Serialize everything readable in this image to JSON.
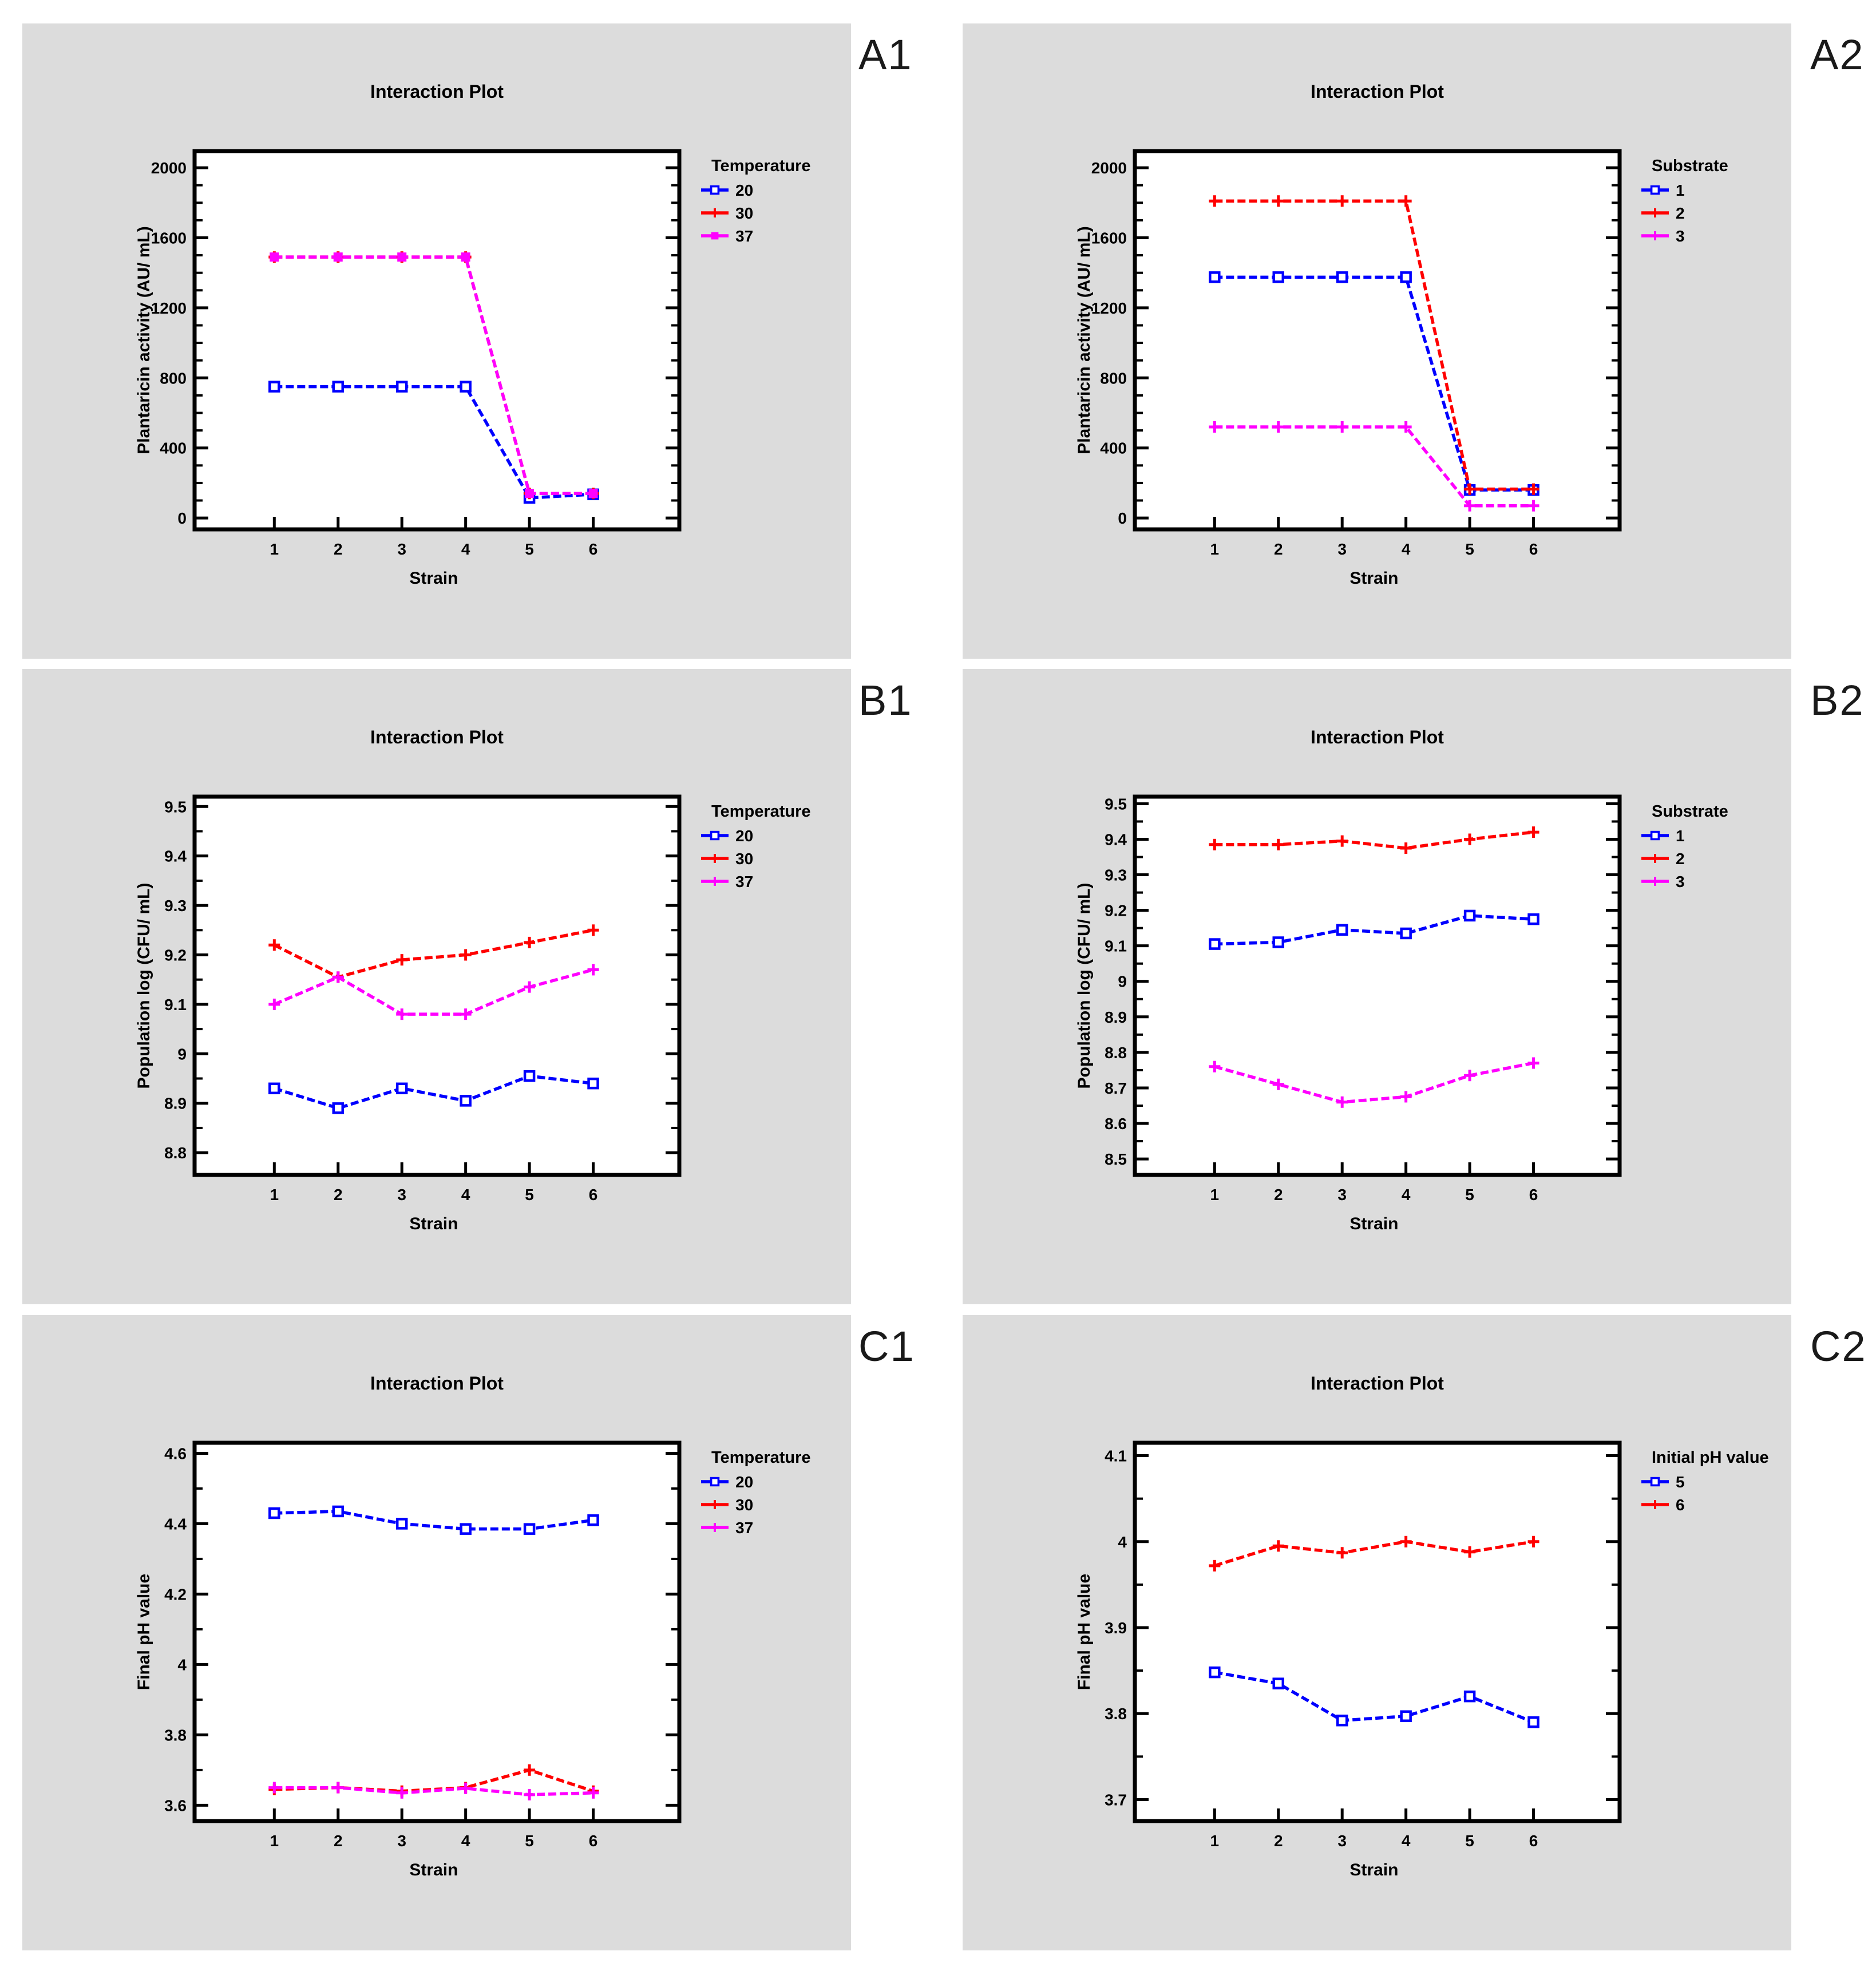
{
  "colors": {
    "panel_bg": "#dcdcdc",
    "plot_bg": "#ffffff",
    "axis": "#000000",
    "blue": "#0000ff",
    "red": "#ff0000",
    "magenta": "#ff00ff"
  },
  "chart_data": [
    {
      "panel_label": "A1",
      "type": "line",
      "title": "Interaction Plot",
      "xlabel": "Strain",
      "ylabel": "Plantaricin activity (AU/ mL)",
      "x": [
        1,
        2,
        3,
        4,
        5,
        6
      ],
      "xlim": [
        -0.25,
        7.35
      ],
      "ylim": [
        -65,
        2095
      ],
      "yticks": [
        0,
        400,
        800,
        1200,
        1600,
        2000
      ],
      "ytick_labels": [
        "0",
        "400",
        "800",
        "1200",
        "1600",
        "2000"
      ],
      "minor_step": 100,
      "grid": false,
      "legend_position": "right-top",
      "legend_title": "Temperature",
      "series": [
        {
          "name": "20",
          "color": "#0000ff",
          "marker": "square-open",
          "line": "dashed",
          "values": [
            750,
            750,
            750,
            750,
            115,
            135
          ]
        },
        {
          "name": "30",
          "color": "#ff0000",
          "marker": "plus",
          "line": "dashed",
          "values": [
            1490,
            1490,
            1490,
            1490,
            140,
            140
          ]
        },
        {
          "name": "37",
          "color": "#ff00ff",
          "marker": "square-filled",
          "line": "dashed",
          "values": [
            1490,
            1490,
            1490,
            1490,
            140,
            140
          ]
        }
      ]
    },
    {
      "panel_label": "A2",
      "type": "line",
      "title": "Interaction Plot",
      "xlabel": "Strain",
      "ylabel": "Plantaricin activity (AU/ mL)",
      "x": [
        1,
        2,
        3,
        4,
        5,
        6
      ],
      "xlim": [
        -0.25,
        7.35
      ],
      "ylim": [
        -65,
        2095
      ],
      "yticks": [
        0,
        400,
        800,
        1200,
        1600,
        2000
      ],
      "ytick_labels": [
        "0",
        "400",
        "800",
        "1200",
        "1600",
        "2000"
      ],
      "minor_step": 100,
      "grid": false,
      "legend_position": "right-top",
      "legend_title": "Substrate",
      "series": [
        {
          "name": "1",
          "color": "#0000ff",
          "marker": "square-open",
          "line": "dashed",
          "values": [
            1375,
            1375,
            1375,
            1375,
            160,
            160
          ]
        },
        {
          "name": "2",
          "color": "#ff0000",
          "marker": "plus",
          "line": "dashed",
          "values": [
            1810,
            1810,
            1810,
            1810,
            165,
            165
          ]
        },
        {
          "name": "3",
          "color": "#ff00ff",
          "marker": "plus",
          "line": "dashed",
          "values": [
            520,
            520,
            520,
            520,
            70,
            70
          ]
        }
      ]
    },
    {
      "panel_label": "B1",
      "type": "line",
      "title": "Interaction Plot",
      "xlabel": "Strain",
      "ylabel": "Population log (CFU/ mL)",
      "x": [
        1,
        2,
        3,
        4,
        5,
        6
      ],
      "xlim": [
        -0.25,
        7.35
      ],
      "ylim": [
        8.755,
        9.52
      ],
      "yticks": [
        8.8,
        8.9,
        9.0,
        9.1,
        9.2,
        9.3,
        9.4,
        9.5
      ],
      "ytick_labels": [
        "8.8",
        "8.9",
        "9",
        "9.1",
        "9.2",
        "9.3",
        "9.4",
        "9.5"
      ],
      "minor_step": 0.05,
      "grid": false,
      "legend_position": "right-top",
      "legend_title": "Temperature",
      "series": [
        {
          "name": "20",
          "color": "#0000ff",
          "marker": "square-open",
          "line": "dashed",
          "values": [
            8.93,
            8.89,
            8.93,
            8.905,
            8.955,
            8.94
          ]
        },
        {
          "name": "30",
          "color": "#ff0000",
          "marker": "plus",
          "line": "dashed",
          "values": [
            9.22,
            9.155,
            9.19,
            9.2,
            9.225,
            9.25
          ]
        },
        {
          "name": "37",
          "color": "#ff00ff",
          "marker": "plus",
          "line": "dashed",
          "values": [
            9.1,
            9.155,
            9.08,
            9.08,
            9.135,
            9.17
          ]
        }
      ]
    },
    {
      "panel_label": "B2",
      "type": "line",
      "title": "Interaction Plot",
      "xlabel": "Strain",
      "ylabel": "Population log (CFU/ mL)",
      "x": [
        1,
        2,
        3,
        4,
        5,
        6
      ],
      "xlim": [
        -0.25,
        7.35
      ],
      "ylim": [
        8.455,
        9.52
      ],
      "yticks": [
        8.5,
        8.6,
        8.7,
        8.8,
        8.9,
        9.0,
        9.1,
        9.2,
        9.3,
        9.4,
        9.5
      ],
      "ytick_labels": [
        "8.5",
        "8.6",
        "8.7",
        "8.8",
        "8.9",
        "9",
        "9.1",
        "9.2",
        "9.3",
        "9.4",
        "9.5"
      ],
      "minor_step": 0.05,
      "grid": false,
      "legend_position": "right-top",
      "legend_title": "Substrate",
      "series": [
        {
          "name": "1",
          "color": "#0000ff",
          "marker": "square-open",
          "line": "dashed",
          "values": [
            9.105,
            9.11,
            9.145,
            9.135,
            9.185,
            9.175
          ]
        },
        {
          "name": "2",
          "color": "#ff0000",
          "marker": "plus",
          "line": "dashed",
          "values": [
            9.385,
            9.385,
            9.395,
            9.375,
            9.4,
            9.42
          ]
        },
        {
          "name": "3",
          "color": "#ff00ff",
          "marker": "plus",
          "line": "dashed",
          "values": [
            8.76,
            8.71,
            8.66,
            8.675,
            8.735,
            8.77
          ]
        }
      ]
    },
    {
      "panel_label": "C1",
      "type": "line",
      "title": "Interaction Plot",
      "xlabel": "Strain",
      "ylabel": "Final pH value",
      "x": [
        1,
        2,
        3,
        4,
        5,
        6
      ],
      "xlim": [
        -0.25,
        7.35
      ],
      "ylim": [
        3.555,
        4.63
      ],
      "yticks": [
        3.6,
        3.8,
        4.0,
        4.2,
        4.4,
        4.6
      ],
      "ytick_labels": [
        "3.6",
        "3.8",
        "4",
        "4.2",
        "4.4",
        "4.6"
      ],
      "minor_step": 0.1,
      "grid": false,
      "legend_position": "right-top",
      "legend_title": "Temperature",
      "series": [
        {
          "name": "20",
          "color": "#0000ff",
          "marker": "square-open",
          "line": "dashed",
          "values": [
            4.43,
            4.435,
            4.4,
            4.385,
            4.385,
            4.41
          ]
        },
        {
          "name": "30",
          "color": "#ff0000",
          "marker": "plus",
          "line": "dashed",
          "values": [
            3.645,
            3.65,
            3.64,
            3.65,
            3.7,
            3.64
          ]
        },
        {
          "name": "37",
          "color": "#ff00ff",
          "marker": "plus",
          "line": "dashed",
          "values": [
            3.65,
            3.65,
            3.635,
            3.648,
            3.63,
            3.635
          ]
        }
      ]
    },
    {
      "panel_label": "C2",
      "type": "line",
      "title": "Interaction Plot",
      "xlabel": "Strain",
      "ylabel": "Final pH value",
      "x": [
        1,
        2,
        3,
        4,
        5,
        6
      ],
      "xlim": [
        -0.25,
        7.35
      ],
      "ylim": [
        3.675,
        4.115
      ],
      "yticks": [
        3.7,
        3.8,
        3.9,
        4.0,
        4.1
      ],
      "ytick_labels": [
        "3.7",
        "3.8",
        "3.9",
        "4",
        "4.1"
      ],
      "minor_step": 0.05,
      "grid": false,
      "legend_position": "right-top",
      "legend_title": "Initial pH value",
      "series": [
        {
          "name": "5",
          "color": "#0000ff",
          "marker": "square-open",
          "line": "dashed",
          "values": [
            3.848,
            3.835,
            3.792,
            3.797,
            3.82,
            3.79
          ]
        },
        {
          "name": "6",
          "color": "#ff0000",
          "marker": "plus",
          "line": "dashed",
          "values": [
            3.972,
            3.995,
            3.987,
            4.0,
            3.988,
            4.0
          ]
        }
      ]
    }
  ]
}
